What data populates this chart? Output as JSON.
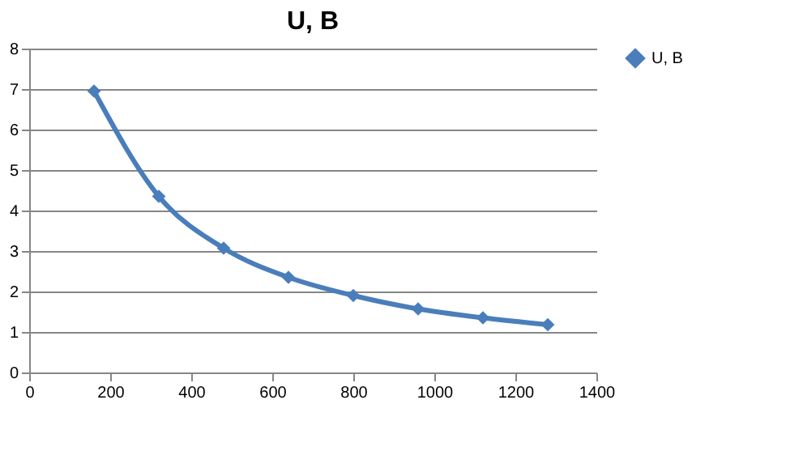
{
  "chart_data": {
    "type": "line",
    "title": "U, B",
    "x": [
      160,
      320,
      480,
      640,
      800,
      960,
      1120,
      1280
    ],
    "series": [
      {
        "name": "U, B",
        "color": "#4a7ebb",
        "values": [
          6.95,
          4.35,
          3.07,
          2.35,
          1.9,
          1.57,
          1.35,
          1.18
        ]
      }
    ],
    "xlim": [
      0,
      1400
    ],
    "xticks": [
      0,
      200,
      400,
      600,
      800,
      1000,
      1200,
      1400
    ],
    "ylim": [
      0,
      8
    ],
    "yticks": [
      0,
      1,
      2,
      3,
      4,
      5,
      6,
      7,
      8
    ],
    "grid": "y",
    "legend": "right",
    "marker": "diamond",
    "line_style": "solid"
  }
}
